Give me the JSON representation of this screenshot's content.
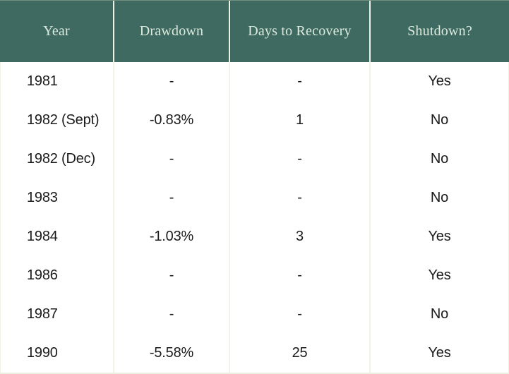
{
  "chart_data": {
    "type": "table",
    "title": "",
    "columns": [
      "Year",
      "Drawdown",
      "Days to Recovery",
      "Shutdown?"
    ],
    "rows": [
      [
        "1981",
        "-",
        "-",
        "Yes"
      ],
      [
        "1982 (Sept)",
        "-0.83%",
        "1",
        "No"
      ],
      [
        "1982 (Dec)",
        "-",
        "-",
        "No"
      ],
      [
        "1983",
        "-",
        "-",
        "No"
      ],
      [
        "1984",
        "-1.03%",
        "3",
        "Yes"
      ],
      [
        "1986",
        "-",
        "-",
        "Yes"
      ],
      [
        "1987",
        "-",
        "-",
        "No"
      ],
      [
        "1990",
        "-5.58%",
        "25",
        "Yes"
      ]
    ],
    "layout": {
      "header_alignment": "center",
      "year_column_alignment": "left",
      "value_columns_alignment": "center",
      "grid": "vertical-dividers-only"
    }
  },
  "colors": {
    "header_background": "#3F6A62",
    "header_text": "#DBEADC",
    "header_divider": "#EEF2E6",
    "body_background": "#FFFFFF",
    "body_divider": "#F1F2E9",
    "body_text": "#1B1B1B",
    "outer_border": "#EAEFE2"
  }
}
